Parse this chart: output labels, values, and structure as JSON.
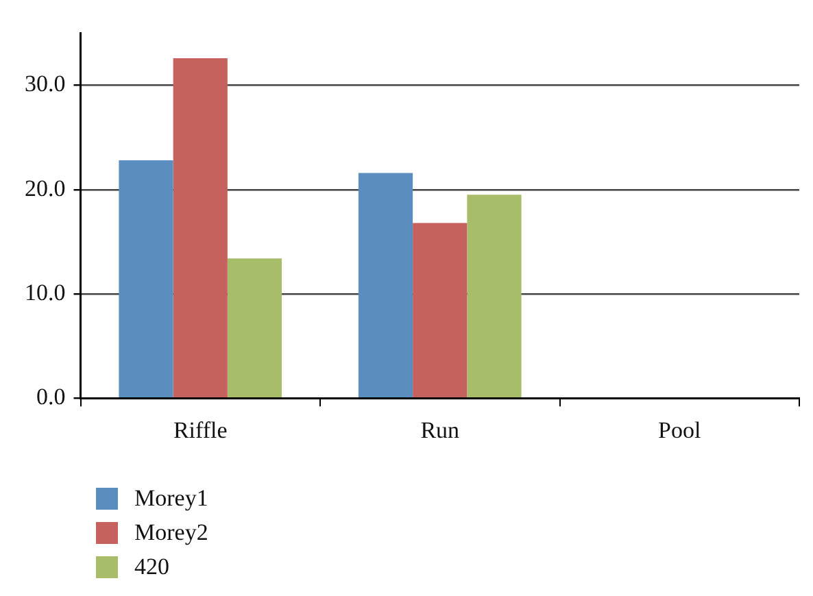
{
  "chart_data": {
    "type": "bar",
    "categories": [
      "Riffle",
      "Run",
      "Pool"
    ],
    "series": [
      {
        "name": "Morey1",
        "color": "#5b8ebf",
        "values": [
          22.8,
          21.6,
          null
        ]
      },
      {
        "name": "Morey2",
        "color": "#c6625d",
        "values": [
          32.6,
          16.8,
          null
        ]
      },
      {
        "name": "420",
        "color": "#a8bd69",
        "values": [
          13.4,
          19.5,
          null
        ]
      }
    ],
    "ylim": [
      0,
      35
    ],
    "yticks": [
      {
        "value": 0,
        "label": "0.0"
      },
      {
        "value": 10,
        "label": "10.0"
      },
      {
        "value": 20,
        "label": "20.0"
      },
      {
        "value": 30,
        "label": "30.0"
      }
    ],
    "grid": "y",
    "legend": "bottom left"
  }
}
